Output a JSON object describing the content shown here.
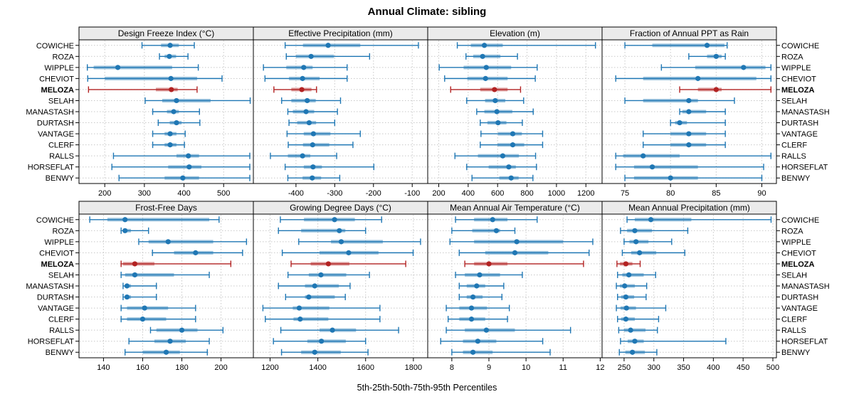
{
  "title": "Annual Climate: sibling",
  "xlabel": "5th-25th-50th-75th-95th Percentiles",
  "colors": {
    "series": "#1f77b4",
    "highlight": "#b22222",
    "header_bg": "#ebebeb",
    "grid": "#c8c8c8",
    "border": "#000000"
  },
  "sites": [
    {
      "label": "COWICHE",
      "highlight": false
    },
    {
      "label": "ROZA",
      "highlight": false
    },
    {
      "label": "WIPPLE",
      "highlight": false
    },
    {
      "label": "CHEVIOT",
      "highlight": false
    },
    {
      "label": "MELOZA",
      "highlight": true
    },
    {
      "label": "SELAH",
      "highlight": false
    },
    {
      "label": "MANASTASH",
      "highlight": false
    },
    {
      "label": "DURTASH",
      "highlight": false
    },
    {
      "label": "VANTAGE",
      "highlight": false
    },
    {
      "label": "CLERF",
      "highlight": false
    },
    {
      "label": "RALLS",
      "highlight": false
    },
    {
      "label": "HORSEFLAT",
      "highlight": false
    },
    {
      "label": "BENWY",
      "highlight": false
    }
  ],
  "chart_data": {
    "type": "interval-dot-plot",
    "title": "Annual Climate: sibling",
    "caption": "5th-25th-50th-75th-95th Percentiles",
    "percentiles": [
      5,
      25,
      50,
      75,
      95
    ],
    "grid": "dotted",
    "panels": [
      {
        "title": "Design Freeze Index (°C)",
        "xlim": [
          135,
          575
        ],
        "ticks": [
          200,
          300,
          400,
          500
        ],
        "values": [
          [
            294,
            342,
            365,
            387,
            426
          ],
          [
            338,
            351,
            363,
            380,
            410
          ],
          [
            156,
            172,
            233,
            370,
            436
          ],
          [
            157,
            200,
            367,
            433,
            496
          ],
          [
            159,
            329,
            368,
            384,
            433
          ],
          [
            302,
            345,
            381,
            467,
            567
          ],
          [
            321,
            357,
            374,
            387,
            439
          ],
          [
            335,
            364,
            381,
            394,
            440
          ],
          [
            321,
            351,
            365,
            381,
            403
          ],
          [
            321,
            351,
            365,
            381,
            401
          ],
          [
            222,
            381,
            411,
            438,
            566
          ],
          [
            218,
            360,
            413,
            444,
            566
          ],
          [
            236,
            351,
            397,
            438,
            566
          ]
        ]
      },
      {
        "title": "Effective Precipitation (mm)",
        "xlim": [
          -510,
          -60
        ],
        "ticks": [
          -400,
          -300,
          -200,
          -100
        ],
        "values": [
          [
            -428,
            -382,
            -317,
            -234,
            -84
          ],
          [
            -425,
            -400,
            -361,
            -302,
            -210
          ],
          [
            -484,
            -425,
            -380,
            -357,
            -268
          ],
          [
            -480,
            -418,
            -383,
            -339,
            -268
          ],
          [
            -457,
            -412,
            -385,
            -360,
            -347
          ],
          [
            -437,
            -412,
            -371,
            -349,
            -285
          ],
          [
            -421,
            -408,
            -374,
            -353,
            -293
          ],
          [
            -418,
            -397,
            -366,
            -348,
            -300
          ],
          [
            -423,
            -380,
            -355,
            -311,
            -234
          ],
          [
            -420,
            -382,
            -357,
            -314,
            -253
          ],
          [
            -466,
            -421,
            -383,
            -363,
            -295
          ],
          [
            -428,
            -380,
            -356,
            -333,
            -199
          ],
          [
            -421,
            -383,
            -358,
            -335,
            -287
          ]
        ]
      },
      {
        "title": "Elevation (m)",
        "xlim": [
          125,
          1310
        ],
        "ticks": [
          200,
          400,
          600,
          800,
          1000,
          1200
        ],
        "values": [
          [
            326,
            418,
            510,
            635,
            1265
          ],
          [
            385,
            434,
            498,
            619,
            735
          ],
          [
            203,
            369,
            523,
            692,
            869
          ],
          [
            240,
            394,
            518,
            668,
            856
          ],
          [
            281,
            482,
            579,
            668,
            756
          ],
          [
            390,
            515,
            584,
            652,
            777
          ],
          [
            458,
            510,
            595,
            700,
            842
          ],
          [
            482,
            531,
            603,
            660,
            768
          ],
          [
            487,
            603,
            703,
            765,
            906
          ],
          [
            482,
            600,
            703,
            781,
            906
          ],
          [
            310,
            466,
            635,
            745,
            858
          ],
          [
            390,
            539,
            676,
            724,
            864
          ],
          [
            426,
            611,
            692,
            743,
            840
          ]
        ]
      },
      {
        "title": "Fraction of Annual PPT as Rain",
        "xlim": [
          72.5,
          91.6
        ],
        "ticks": [
          75,
          80,
          85,
          90
        ],
        "values": [
          [
            75,
            78,
            84,
            85.9,
            86.2
          ],
          [
            82,
            84,
            85,
            85.6,
            86
          ],
          [
            79,
            82.7,
            88,
            90.4,
            91
          ],
          [
            74,
            77,
            83,
            89.4,
            91
          ],
          [
            81,
            83,
            85,
            85.6,
            91
          ],
          [
            75,
            77,
            82,
            83,
            87
          ],
          [
            81,
            81.3,
            82,
            83.9,
            86
          ],
          [
            80,
            80.5,
            81,
            81.8,
            86
          ],
          [
            77,
            80,
            82,
            83.9,
            86
          ],
          [
            77,
            80,
            82,
            83.9,
            86
          ],
          [
            74,
            74.8,
            77,
            81,
            91
          ],
          [
            74,
            76,
            78,
            83,
            90.2
          ],
          [
            75,
            76,
            80,
            83,
            90
          ]
        ]
      },
      {
        "title": "Frost-Free Days",
        "xlim": [
          127.5,
          216.5
        ],
        "ticks": [
          140,
          160,
          180,
          200
        ],
        "values": [
          [
            133,
            142,
            151,
            194,
            199
          ],
          [
            149,
            150,
            151,
            154,
            163
          ],
          [
            158,
            163,
            173,
            196,
            213
          ],
          [
            165,
            176,
            187,
            196,
            211
          ],
          [
            149,
            150,
            156,
            166,
            205
          ],
          [
            149,
            151,
            156,
            176,
            194
          ],
          [
            150,
            151,
            152,
            154,
            167
          ],
          [
            150,
            151,
            152,
            154,
            167
          ],
          [
            149,
            152,
            161,
            173,
            187
          ],
          [
            149,
            152,
            160,
            172,
            187
          ],
          [
            164,
            167,
            180,
            188,
            201
          ],
          [
            153,
            166,
            174,
            182,
            194
          ],
          [
            151,
            160,
            172,
            179,
            193
          ]
        ]
      },
      {
        "title": "Growing Degree Days (°C)",
        "xlim": [
          1130,
          1860
        ],
        "ticks": [
          1200,
          1400,
          1600,
          1800
        ],
        "values": [
          [
            1243,
            1342,
            1470,
            1555,
            1667
          ],
          [
            1235,
            1330,
            1490,
            1515,
            1600
          ],
          [
            1320,
            1455,
            1498,
            1672,
            1830
          ],
          [
            1251,
            1407,
            1529,
            1654,
            1799
          ],
          [
            1288,
            1370,
            1444,
            1532,
            1768
          ],
          [
            1275,
            1362,
            1413,
            1519,
            1616
          ],
          [
            1235,
            1346,
            1387,
            1488,
            1535
          ],
          [
            1265,
            1346,
            1362,
            1471,
            1515
          ],
          [
            1170,
            1295,
            1322,
            1448,
            1660
          ],
          [
            1180,
            1298,
            1326,
            1444,
            1660
          ],
          [
            1245,
            1407,
            1461,
            1560,
            1738
          ],
          [
            1214,
            1356,
            1415,
            1517,
            1600
          ],
          [
            1248,
            1330,
            1387,
            1496,
            1610
          ]
        ]
      },
      {
        "title": "Mean Annual Air Temperature (°C)",
        "xlim": [
          7.35,
          12.05
        ],
        "ticks": [
          8,
          9,
          10,
          11,
          12
        ],
        "values": [
          [
            8.1,
            8.6,
            9.1,
            9.5,
            10.3
          ],
          [
            8.0,
            8.55,
            9.2,
            9.3,
            9.7
          ],
          [
            7.95,
            8.6,
            9.75,
            11.0,
            11.8
          ],
          [
            8.2,
            8.9,
            9.7,
            10.6,
            11.7
          ],
          [
            8.35,
            8.6,
            9.0,
            9.5,
            11.55
          ],
          [
            8.1,
            8.35,
            8.75,
            9.3,
            9.9
          ],
          [
            8.2,
            8.4,
            8.67,
            8.9,
            9.4
          ],
          [
            8.2,
            8.4,
            8.57,
            8.83,
            9.35
          ],
          [
            7.85,
            8.2,
            8.53,
            8.95,
            9.55
          ],
          [
            7.9,
            8.2,
            8.53,
            8.9,
            9.5
          ],
          [
            7.85,
            8.35,
            8.93,
            9.7,
            11.2
          ],
          [
            7.7,
            8.3,
            8.7,
            9.2,
            10.45
          ],
          [
            8.0,
            8.3,
            8.57,
            9.1,
            10.65
          ]
        ]
      },
      {
        "title": "Mean Annual Precipitation (mm)",
        "xlim": [
          213,
          506
        ],
        "ticks": [
          250,
          300,
          350,
          400,
          450,
          500
        ],
        "values": [
          [
            255,
            268,
            295,
            363,
            497
          ],
          [
            244,
            255,
            268,
            297,
            357
          ],
          [
            250,
            259,
            270,
            291,
            330
          ],
          [
            247,
            262,
            276,
            304,
            352
          ],
          [
            238,
            243,
            253,
            264,
            277
          ],
          [
            239,
            247,
            258,
            283,
            303
          ],
          [
            237,
            243,
            251,
            268,
            288
          ],
          [
            239,
            245,
            253,
            267,
            287
          ],
          [
            237,
            244,
            254,
            270,
            320
          ],
          [
            239,
            245,
            253,
            268,
            308
          ],
          [
            241,
            250,
            261,
            286,
            306
          ],
          [
            244,
            256,
            268,
            283,
            421
          ],
          [
            242,
            252,
            264,
            285,
            305
          ]
        ]
      }
    ]
  }
}
